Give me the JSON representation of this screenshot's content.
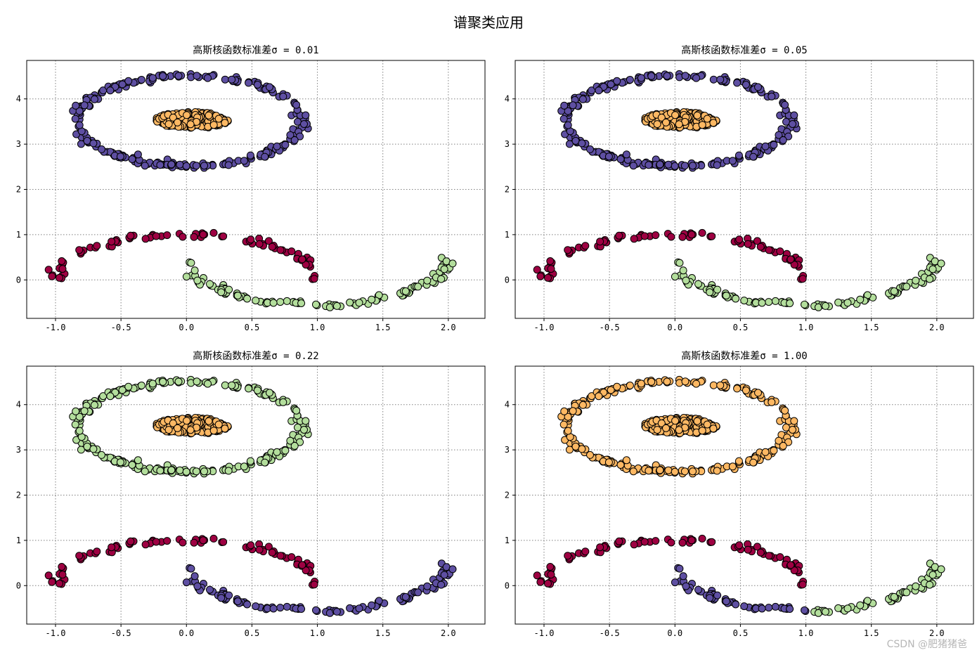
{
  "figure": {
    "suptitle": "谱聚类应用",
    "watermark": "CSDN @肥猪猪爸"
  },
  "colors": {
    "purple": "#5e4fa2",
    "orange": "#fdb863",
    "crimson": "#9e0142",
    "lightgreen": "#b3de9c"
  },
  "chart_data": [
    {
      "type": "scatter",
      "title": "高斯核函数标准差σ = 0.01",
      "xlim": [
        -1.22,
        2.28
      ],
      "ylim": [
        -0.85,
        4.85
      ],
      "xticks": [
        "-1.0",
        "-0.5",
        "0.0",
        "0.5",
        "1.0",
        "1.5",
        "2.0"
      ],
      "yticks": [
        "0",
        "1",
        "2",
        "3",
        "4"
      ],
      "grid": true,
      "clusters": {
        "outer_ring": "purple",
        "inner_blob": "orange",
        "upper_moon": "crimson",
        "lower_moon": "lightgreen"
      }
    },
    {
      "type": "scatter",
      "title": "高斯核函数标准差σ = 0.05",
      "xlim": [
        -1.22,
        2.28
      ],
      "ylim": [
        -0.85,
        4.85
      ],
      "xticks": [
        "-1.0",
        "-0.5",
        "0.0",
        "0.5",
        "1.0",
        "1.5",
        "2.0"
      ],
      "yticks": [
        "0",
        "1",
        "2",
        "3",
        "4"
      ],
      "grid": true,
      "clusters": {
        "outer_ring": "purple",
        "inner_blob": "orange",
        "upper_moon": "crimson",
        "lower_moon": "lightgreen"
      }
    },
    {
      "type": "scatter",
      "title": "高斯核函数标准差σ = 0.22",
      "xlim": [
        -1.22,
        2.28
      ],
      "ylim": [
        -0.85,
        4.85
      ],
      "xticks": [
        "-1.0",
        "-0.5",
        "0.0",
        "0.5",
        "1.0",
        "1.5",
        "2.0"
      ],
      "yticks": [
        "0",
        "1",
        "2",
        "3",
        "4"
      ],
      "grid": true,
      "clusters": {
        "outer_ring": "lightgreen",
        "inner_blob": "orange",
        "upper_moon": "crimson",
        "lower_moon": "purple"
      }
    },
    {
      "type": "scatter",
      "title": "高斯核函数标准差σ = 1.00",
      "xlim": [
        -1.22,
        2.28
      ],
      "ylim": [
        -0.85,
        4.85
      ],
      "xticks": [
        "-1.0",
        "-0.5",
        "0.0",
        "0.5",
        "1.0",
        "1.5",
        "2.0"
      ],
      "yticks": [
        "0",
        "1",
        "2",
        "3",
        "4"
      ],
      "grid": true,
      "clusters": {
        "outer_ring": "orange",
        "inner_blob": "orange",
        "upper_moon": "crimson",
        "lower_moon": "purple"
      },
      "lower_moon_split": {
        "x_threshold": 1.05,
        "right_color": "lightgreen"
      }
    }
  ]
}
